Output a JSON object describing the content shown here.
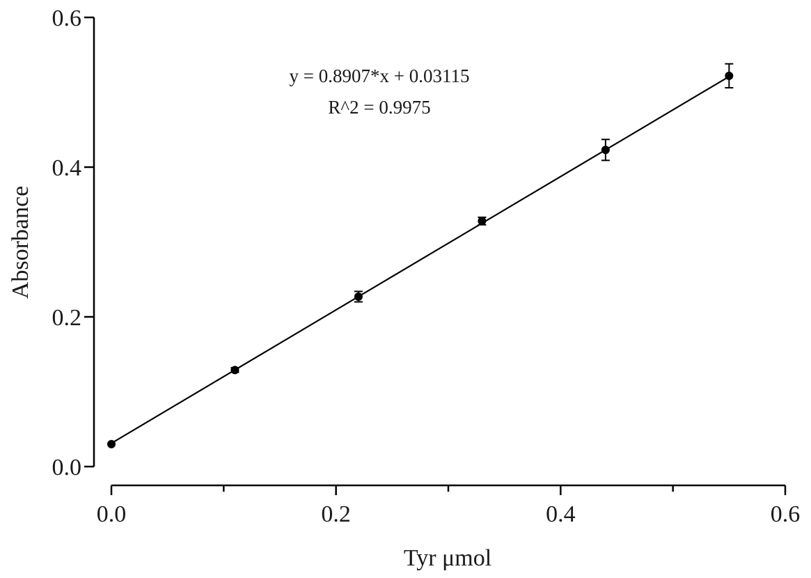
{
  "chart_data": {
    "type": "scatter",
    "xlabel": "Tyr μmol",
    "ylabel": "Absorbance",
    "xlim": [
      0,
      0.6
    ],
    "ylim": [
      0,
      0.6
    ],
    "x_ticks": [
      0.0,
      0.1,
      0.2,
      0.3,
      0.4,
      0.5,
      0.6
    ],
    "x_tick_labels": [
      "0.0",
      "0.2",
      "0.4",
      "0.6"
    ],
    "x_labeled_ticks": [
      0.0,
      0.2,
      0.4,
      0.6
    ],
    "y_ticks": [
      0.0,
      0.2,
      0.4,
      0.6
    ],
    "y_tick_labels": [
      "0.0",
      "0.2",
      "0.4",
      "0.6"
    ],
    "grid": false,
    "series": [
      {
        "x": [
          0.0,
          0.11,
          0.22,
          0.33,
          0.44,
          0.55
        ],
        "y": [
          0.03,
          0.129,
          0.227,
          0.328,
          0.423,
          0.522
        ],
        "y_err": [
          0.002,
          0.003,
          0.007,
          0.005,
          0.014,
          0.016
        ]
      }
    ],
    "fit_line": {
      "slope": 0.8907,
      "intercept": 0.03115,
      "x_range": [
        0.0,
        0.55
      ]
    },
    "annotations": {
      "equation": "y = 0.8907*x + 0.03115",
      "r_squared": "R^2 = 0.9975"
    },
    "colors": {
      "ink": "#000000",
      "text": "#1a1a1a",
      "background": "#ffffff"
    }
  }
}
